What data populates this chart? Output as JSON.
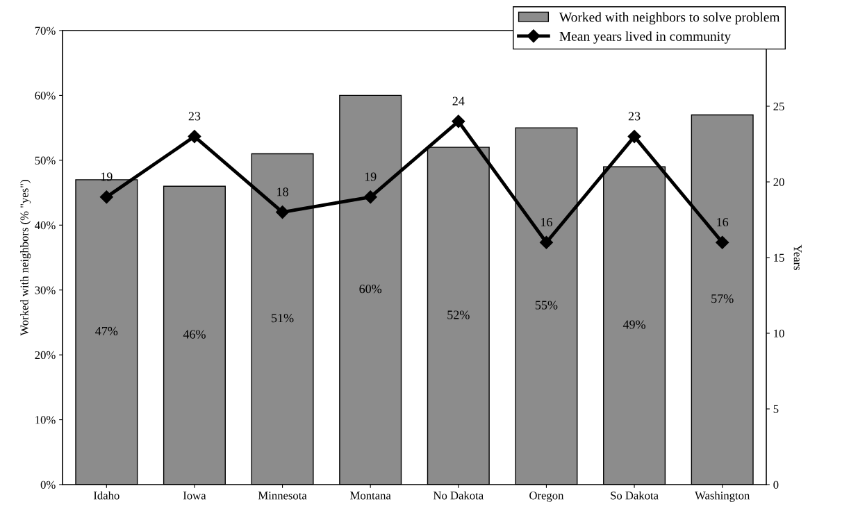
{
  "chart_data": {
    "type": "bar",
    "categories": [
      "Idaho",
      "Iowa",
      "Minnesota",
      "Montana",
      "No Dakota",
      "Oregon",
      "So Dakota",
      "Washington"
    ],
    "ylabel": "Worked with neighbors (% \"yes\")",
    "y2label": "Years",
    "ylim": [
      0,
      70
    ],
    "yticks": [
      {
        "value": 0,
        "label": "0%"
      },
      {
        "value": 10,
        "label": "10%"
      },
      {
        "value": 20,
        "label": "20%"
      },
      {
        "value": 30,
        "label": "30%"
      },
      {
        "value": 40,
        "label": "40%"
      },
      {
        "value": 50,
        "label": "50%"
      },
      {
        "value": 60,
        "label": "60%"
      },
      {
        "value": 70,
        "label": "70%"
      }
    ],
    "y2lim": [
      0,
      30
    ],
    "y2ticks": [
      0,
      5,
      10,
      15,
      20,
      25
    ],
    "series": [
      {
        "name": "Worked with neighbors to solve problem",
        "color": "#8c8c8c",
        "values": [
          47,
          46,
          51,
          60,
          52,
          55,
          49,
          57
        ],
        "value_labels": [
          "47%",
          "46%",
          "51%",
          "60%",
          "52%",
          "55%",
          "49%",
          "57%"
        ]
      },
      {
        "name": "Mean years lived in community",
        "type": "line",
        "axis": "y2",
        "color": "#000000",
        "marker": "diamond",
        "values": [
          19,
          23,
          18,
          19,
          24,
          16,
          23,
          16
        ],
        "value_labels": [
          "19",
          "23",
          "18",
          "19",
          "24",
          "16",
          "23",
          "16"
        ]
      }
    ],
    "legend": "top right",
    "grid": false
  }
}
